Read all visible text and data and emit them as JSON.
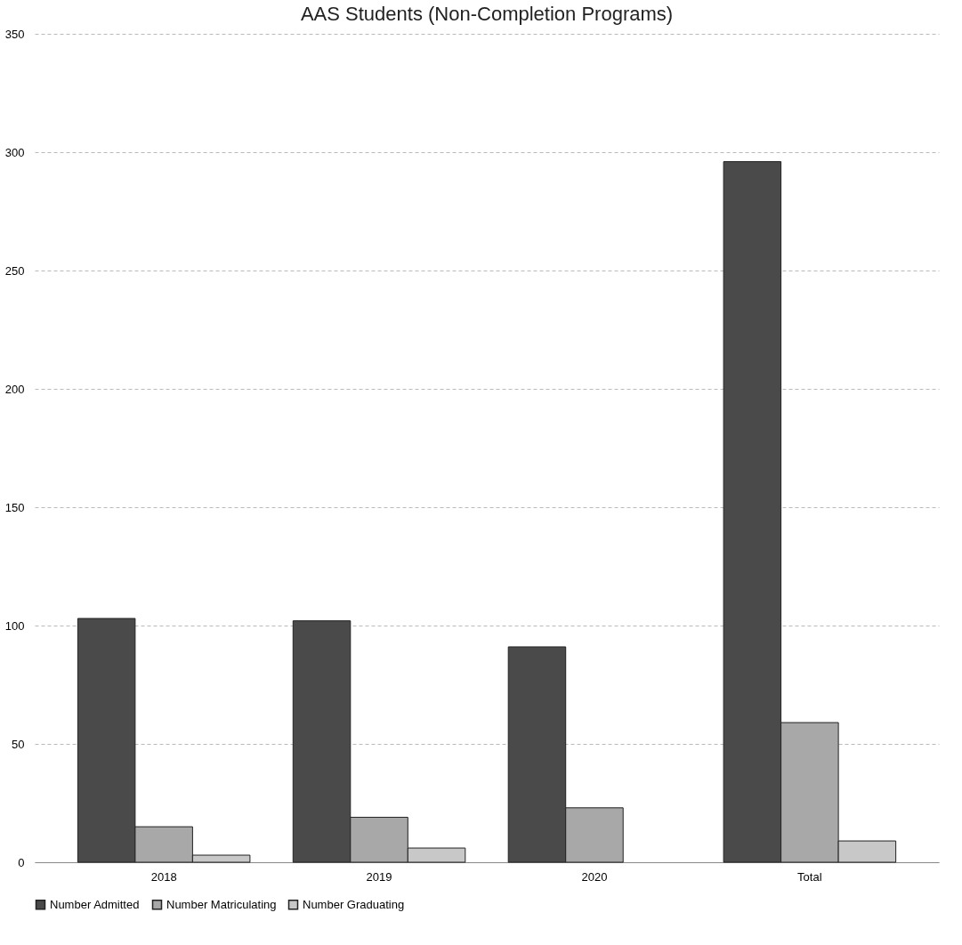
{
  "chart_data": {
    "type": "bar",
    "title": "AAS Students (Non-Completion Programs)",
    "categories": [
      "2018",
      "2019",
      "2020",
      "Total"
    ],
    "series": [
      {
        "name": "Number Admitted",
        "color": "#4a4a4a",
        "values": [
          103,
          102,
          91,
          296
        ]
      },
      {
        "name": "Number Matriculating",
        "color": "#a8a8a8",
        "values": [
          15,
          19,
          23,
          59
        ]
      },
      {
        "name": "Number Graduating",
        "color": "#c8c8c8",
        "values": [
          3,
          6,
          null,
          9
        ]
      }
    ],
    "ylim": [
      0,
      350
    ],
    "yticks": [
      0,
      50,
      100,
      150,
      200,
      250,
      300,
      350
    ],
    "grid": "y",
    "legend": "bottom"
  }
}
